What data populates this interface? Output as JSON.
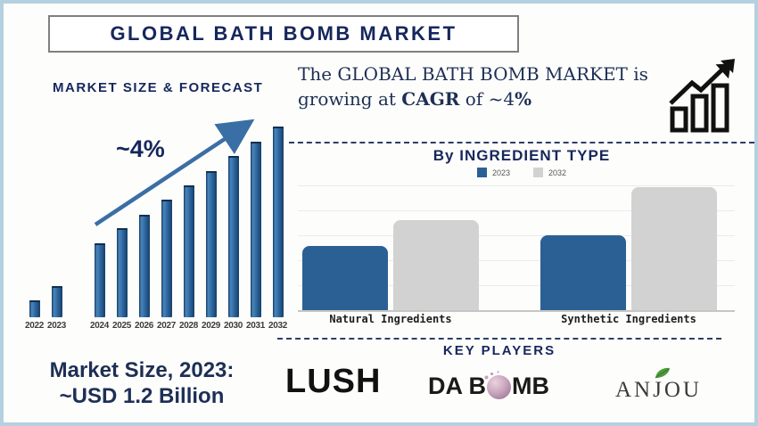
{
  "title": "GLOBAL BATH BOMB MARKET",
  "intro": {
    "part1": "The GLOBAL BATH BOMB MARKET is growing at ",
    "part2": "CAGR",
    "part3": " of ~4",
    "part4": "%"
  },
  "forecast": {
    "heading": "MARKET SIZE & FORECAST",
    "growth_label": "~4%"
  },
  "ingredient": {
    "heading": "By INGREDIENT TYPE"
  },
  "key_players": {
    "heading": "KEY PLAYERS",
    "lush": "LUSH",
    "dabomb_part1": "DA B",
    "dabomb_part2": "MB",
    "anjou_part1": "AN",
    "anjou_part2": "J",
    "anjou_part3": "OU"
  },
  "market_size": {
    "line1": "Market Size, 2023:",
    "line2": "~USD 1.2 Billion"
  },
  "colors": {
    "navy_text": "#16275c",
    "bar_blue": "#2b6094",
    "bar_gray": "#d2d2d2",
    "dashed_line": "#2a3f66",
    "canvas_border": "#b5d0de",
    "arrow_blue": "#3a6fa5"
  },
  "chart_data": [
    {
      "id": "market-size-forecast",
      "type": "bar",
      "title": "MARKET SIZE & FORECAST",
      "categories": [
        "2022",
        "2023",
        "2024",
        "2025",
        "2026",
        "2027",
        "2028",
        "2029",
        "2030",
        "2031",
        "2032"
      ],
      "values": [
        19,
        35,
        83,
        100,
        115,
        132,
        148,
        164,
        181,
        197,
        214
      ],
      "values_note": "relative bar heights in px; no y-axis scale shown on chart",
      "annotation": "~4%",
      "known_points": {
        "2023_usd_billion": 1.2,
        "cagr_pct": 4
      },
      "xlabel": "",
      "ylabel": "",
      "grid": false,
      "legend_position": "none",
      "gap_after_index": 1
    },
    {
      "id": "by-ingredient-type",
      "type": "bar",
      "title": "By INGREDIENT TYPE",
      "categories": [
        "Natural Ingredients",
        "Synthetic Ingredients"
      ],
      "series": [
        {
          "name": "2023",
          "values": [
            72,
            84
          ],
          "color": "#2b6094"
        },
        {
          "name": "2032",
          "values": [
            101,
            138
          ],
          "color": "#d2d2d2"
        }
      ],
      "values_note": "relative bar heights in px; no y-axis scale shown on chart",
      "xlabel": "",
      "ylabel": "",
      "grid": true,
      "legend_position": "top"
    }
  ]
}
